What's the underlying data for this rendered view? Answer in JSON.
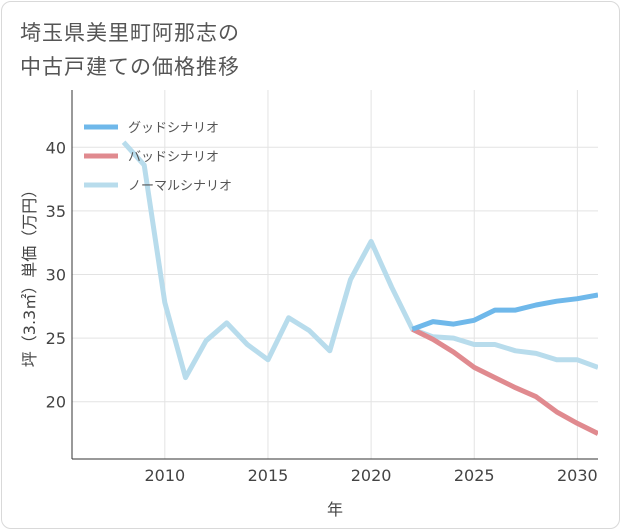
{
  "title_line1": "埼玉県美里町阿那志の",
  "title_line2": "中古戸建ての価格推移",
  "chart_data": {
    "type": "line",
    "title": "埼玉県美里町阿那志の中古戸建ての価格推移",
    "xlabel": "年",
    "ylabel": "坪（3.3㎡）単価（万円）",
    "xlim": [
      2005.5,
      2031
    ],
    "ylim": [
      15.5,
      44.5
    ],
    "xticks": [
      2010,
      2015,
      2020,
      2025,
      2030
    ],
    "yticks": [
      20,
      25,
      30,
      35,
      40
    ],
    "legend_position": "top-left",
    "series": [
      {
        "name": "グッドシナリオ",
        "color": "#6fb8ea",
        "x": [
          2022,
          2023,
          2024,
          2025,
          2026,
          2027,
          2028,
          2029,
          2030,
          2031
        ],
        "values": [
          25.7,
          26.3,
          26.1,
          26.4,
          27.2,
          27.2,
          27.6,
          27.9,
          28.1,
          28.4
        ]
      },
      {
        "name": "バッドシナリオ",
        "color": "#e08a8f",
        "x": [
          2022,
          2023,
          2024,
          2025,
          2026,
          2027,
          2028,
          2029,
          2030,
          2031
        ],
        "values": [
          25.7,
          24.9,
          23.9,
          22.7,
          21.9,
          21.1,
          20.4,
          19.2,
          18.3,
          17.5
        ]
      },
      {
        "name": "ノーマルシナリオ",
        "color": "#b8dcec",
        "x": [
          2008,
          2009,
          2010,
          2011,
          2012,
          2013,
          2014,
          2015,
          2016,
          2017,
          2018,
          2019,
          2020,
          2021,
          2022,
          2023,
          2024,
          2025,
          2026,
          2027,
          2028,
          2029,
          2030,
          2031
        ],
        "values": [
          40.4,
          38.6,
          27.8,
          21.9,
          24.8,
          26.2,
          24.5,
          23.3,
          26.6,
          25.6,
          24.0,
          29.6,
          32.6,
          29.0,
          25.7,
          25.1,
          25.0,
          24.5,
          24.5,
          24.0,
          23.8,
          23.3,
          23.3,
          22.7
        ]
      }
    ]
  }
}
